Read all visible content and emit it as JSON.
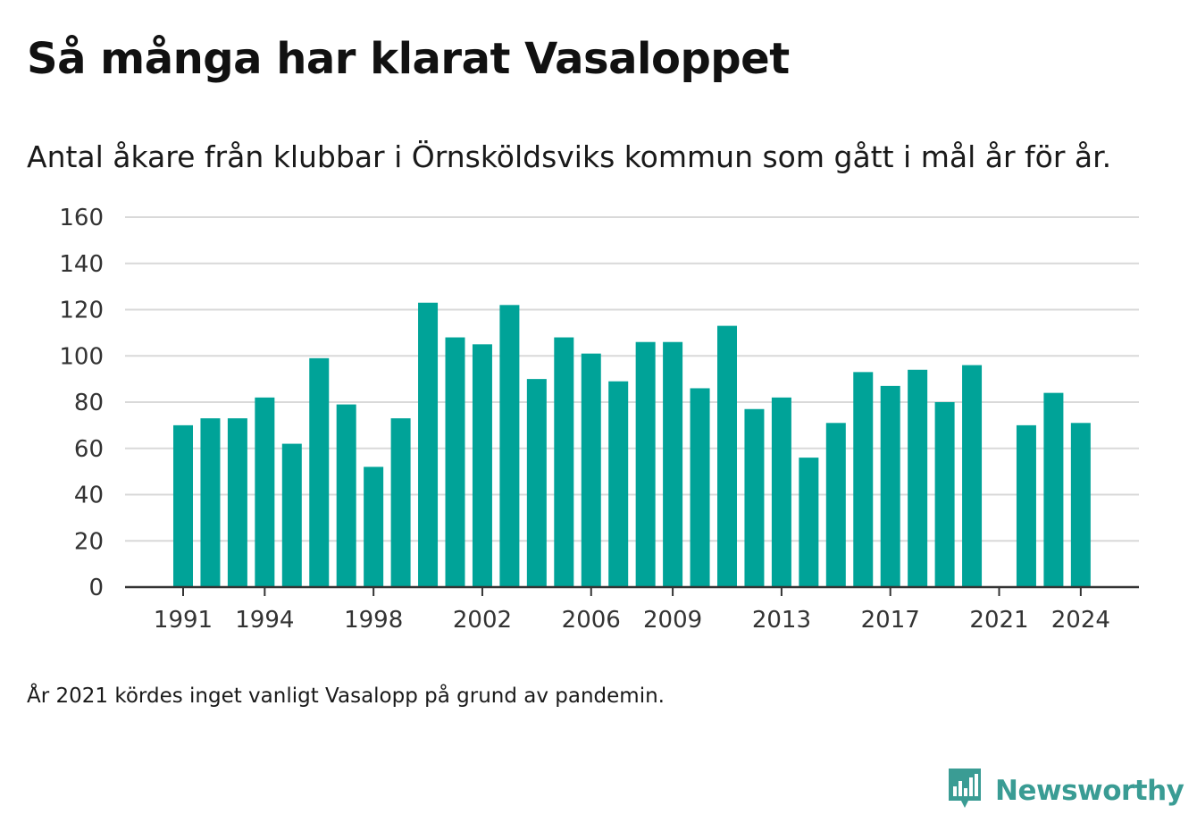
{
  "title": "Så många har klarat Vasaloppet",
  "subtitle": "Antal åkare från klubbar i Örnsköldsviks kommun som gått i mål år för år.",
  "footnote": "År 2021 kördes inget vanligt Vasalopp på grund av pandemin.",
  "brand": {
    "name": "Newsworthy",
    "icon": "bar-chart-speech-bubble-icon",
    "color": "#3a9c94"
  },
  "colors": {
    "bar": "#00a398",
    "grid": "#d9d9d9",
    "axis": "#333333"
  },
  "chart_data": {
    "type": "bar",
    "x": [
      1991,
      1992,
      1993,
      1994,
      1995,
      1996,
      1997,
      1998,
      1999,
      2000,
      2001,
      2002,
      2003,
      2004,
      2005,
      2006,
      2007,
      2008,
      2009,
      2010,
      2011,
      2012,
      2013,
      2014,
      2015,
      2016,
      2017,
      2018,
      2019,
      2020,
      2021,
      2022,
      2023,
      2024
    ],
    "values": [
      70,
      73,
      73,
      82,
      62,
      99,
      79,
      52,
      73,
      123,
      108,
      105,
      122,
      90,
      108,
      101,
      89,
      106,
      106,
      86,
      113,
      77,
      82,
      56,
      71,
      93,
      87,
      94,
      80,
      96,
      null,
      70,
      84,
      71
    ],
    "x_tick_labels": [
      1991,
      1994,
      1998,
      2002,
      2006,
      2009,
      2013,
      2017,
      2021,
      2024
    ],
    "y_ticks": [
      0,
      20,
      40,
      60,
      80,
      100,
      120,
      140,
      160
    ],
    "ylim": [
      0,
      160
    ],
    "title": "Så många har klarat Vasaloppet",
    "xlabel": "",
    "ylabel": "",
    "grid": true,
    "legend": "none"
  }
}
